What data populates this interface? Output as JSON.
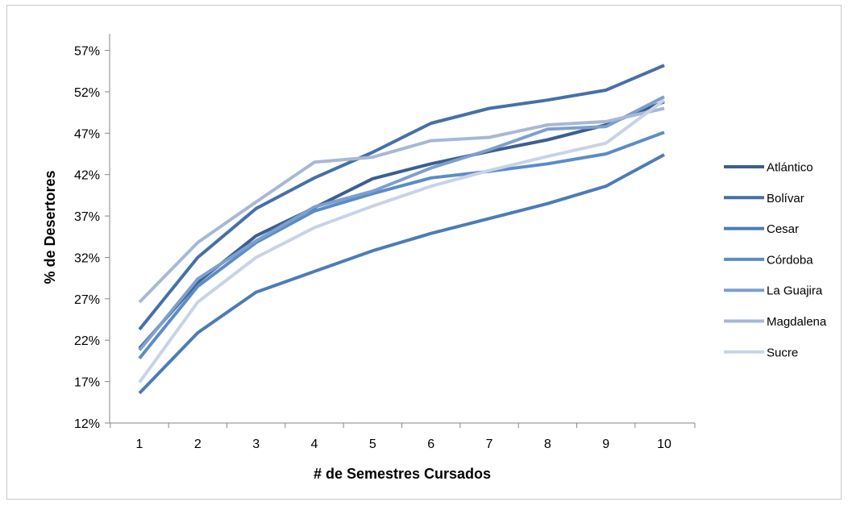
{
  "chart_data": {
    "type": "line",
    "title": "",
    "xlabel": "# de Semestres Cursados",
    "ylabel": "% de Desertores",
    "x": [
      1,
      2,
      3,
      4,
      5,
      6,
      7,
      8,
      9,
      10
    ],
    "x_tick_labels": [
      "1",
      "2",
      "3",
      "4",
      "5",
      "6",
      "7",
      "8",
      "9",
      "10"
    ],
    "ylim": [
      12,
      59
    ],
    "y_ticks": [
      12,
      17,
      22,
      27,
      32,
      37,
      42,
      47,
      52,
      57
    ],
    "y_tick_labels": [
      "12%",
      "17%",
      "22%",
      "27%",
      "32%",
      "37%",
      "42%",
      "47%",
      "52%",
      "57%"
    ],
    "grid": false,
    "legend_position": "right",
    "series": [
      {
        "name": "Atlántico",
        "color": "#3b5f8f",
        "values": [
          21.0,
          29.0,
          34.6,
          38.0,
          41.5,
          43.3,
          44.8,
          46.2,
          48.0,
          50.8
        ]
      },
      {
        "name": "Bolívar",
        "color": "#4670a6",
        "values": [
          23.3,
          32.0,
          37.9,
          41.6,
          44.7,
          48.2,
          50.0,
          51.0,
          52.2,
          55.2
        ]
      },
      {
        "name": "Cesar",
        "color": "#4b7cb6",
        "values": [
          15.6,
          22.9,
          27.8,
          30.3,
          32.8,
          34.9,
          36.7,
          38.5,
          40.6,
          44.4
        ]
      },
      {
        "name": "Córdoba",
        "color": "#5b8cc6",
        "values": [
          19.8,
          28.5,
          33.8,
          37.6,
          39.7,
          41.6,
          42.4,
          43.3,
          44.5,
          47.1
        ]
      },
      {
        "name": "La Guajira",
        "color": "#7d9fce",
        "values": [
          20.8,
          29.4,
          34.0,
          38.1,
          40.0,
          42.8,
          45.0,
          47.5,
          47.8,
          51.4
        ]
      },
      {
        "name": "Magdalena",
        "color": "#a7b8d6",
        "values": [
          26.6,
          33.8,
          38.7,
          43.5,
          44.1,
          46.1,
          46.5,
          48.0,
          48.4,
          50.0
        ]
      },
      {
        "name": "Sucre",
        "color": "#c9d3e6",
        "values": [
          16.9,
          26.6,
          32.0,
          35.6,
          38.2,
          40.6,
          42.5,
          44.2,
          45.8,
          51.0
        ]
      }
    ]
  }
}
